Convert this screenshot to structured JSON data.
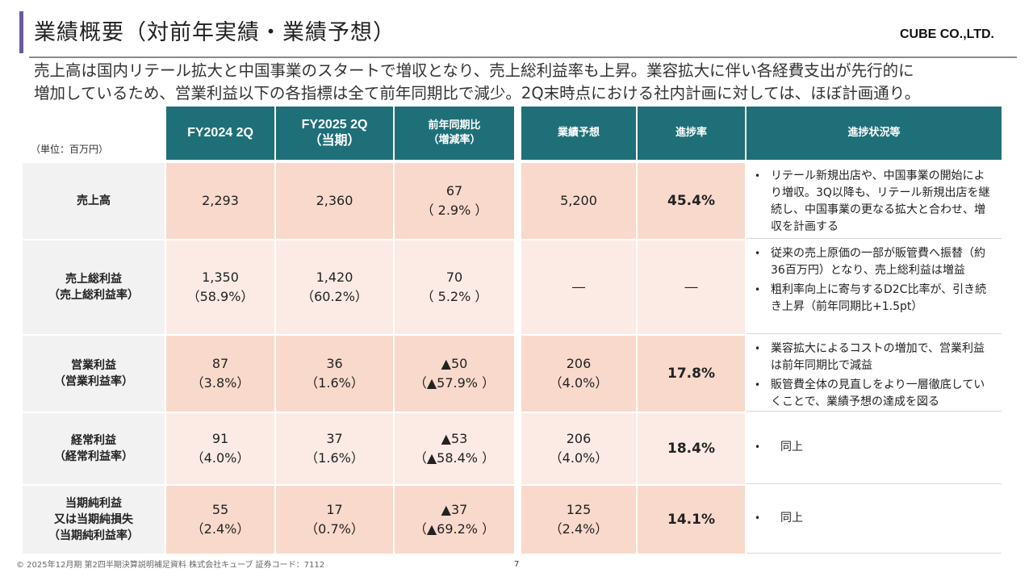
{
  "title": "業績概要（対前年実績・業績予想）",
  "company": "CUBE CO.,LTD.",
  "summary": [
    "売上高は国内リテール拡大と中国事業のスタートで増収となり、売上総利益率も上昇。業容拡大に伴い各経費支出が先行的に",
    "増加しているため、営業利益以下の各指標は全て前年同期比で減少。2Q末時点における社内計画に対しては、ほぼ計画通り。"
  ],
  "unit": "（単位：百万円）",
  "headers": {
    "fy2024": "FY2024 2Q",
    "fy2025_l1": "FY2025 2Q",
    "fy2025_l2": "（当期）",
    "yoy_l1": "前年同期比",
    "yoy_l2": "（増減率）",
    "forecast": "業績予想",
    "progress": "進捗率",
    "status": "進捗状況等"
  },
  "rows": [
    {
      "label": [
        "売上高"
      ],
      "fy2024": [
        "2,293"
      ],
      "fy2025": [
        "2,360"
      ],
      "yoy": [
        "67",
        "（ 2.9% ）"
      ],
      "forecast": [
        "5,200"
      ],
      "progress": "45.4%",
      "status": [
        "リテール新規出店や、中国事業の開始により増収。3Q以降も、リテール新規出店を継続し、中国事業の更なる拡大と合わせ、増収を計画する"
      ]
    },
    {
      "label": [
        "売上総利益",
        "（売上総利益率）"
      ],
      "fy2024": [
        "1,350",
        "（58.9%）"
      ],
      "fy2025": [
        "1,420",
        "（60.2%）"
      ],
      "yoy": [
        "70",
        "（ 5.2% ）"
      ],
      "forecast": [
        "―"
      ],
      "progress": "―",
      "status": [
        "従来の売上原価の一部が販管費へ振替（約36百万円）となり、売上総利益は増益",
        "粗利率向上に寄与するD2C比率が、引き続き上昇（前年同期比+1.5pt）"
      ]
    },
    {
      "label": [
        "営業利益",
        "（営業利益率）"
      ],
      "fy2024": [
        "87",
        "（3.8%）"
      ],
      "fy2025": [
        "36",
        "（1.6%）"
      ],
      "yoy": [
        "▲50",
        "（▲57.9% ）"
      ],
      "forecast": [
        "206",
        "（4.0%）"
      ],
      "progress": "17.8%",
      "status": [
        "業容拡大によるコストの増加で、営業利益は前年同期比で減益",
        "販管費全体の見直しをより一層徹底していくことで、業績予想の達成を図る"
      ]
    },
    {
      "label": [
        "経常利益",
        "（経常利益率）"
      ],
      "fy2024": [
        "91",
        "（4.0%）"
      ],
      "fy2025": [
        "37",
        "（1.6%）"
      ],
      "yoy": [
        "▲53",
        "（▲58.4% ）"
      ],
      "forecast": [
        "206",
        "（4.0%）"
      ],
      "progress": "18.4%",
      "status": [
        "同上"
      ]
    },
    {
      "label": [
        "当期純利益",
        "又は当期純損失",
        "（当期純利益率）"
      ],
      "fy2024": [
        "55",
        "（2.4%）"
      ],
      "fy2025": [
        "17",
        "（0.7%）"
      ],
      "yoy": [
        "▲37",
        "（▲69.2% ）"
      ],
      "forecast": [
        "125",
        "（2.4%）"
      ],
      "progress": "14.1%",
      "status": [
        "同上"
      ]
    }
  ],
  "footer": "© 2025年12月期 第2四半期決算説明補足資料 株式会社キューブ 証券コード：7112",
  "page_number": "7"
}
